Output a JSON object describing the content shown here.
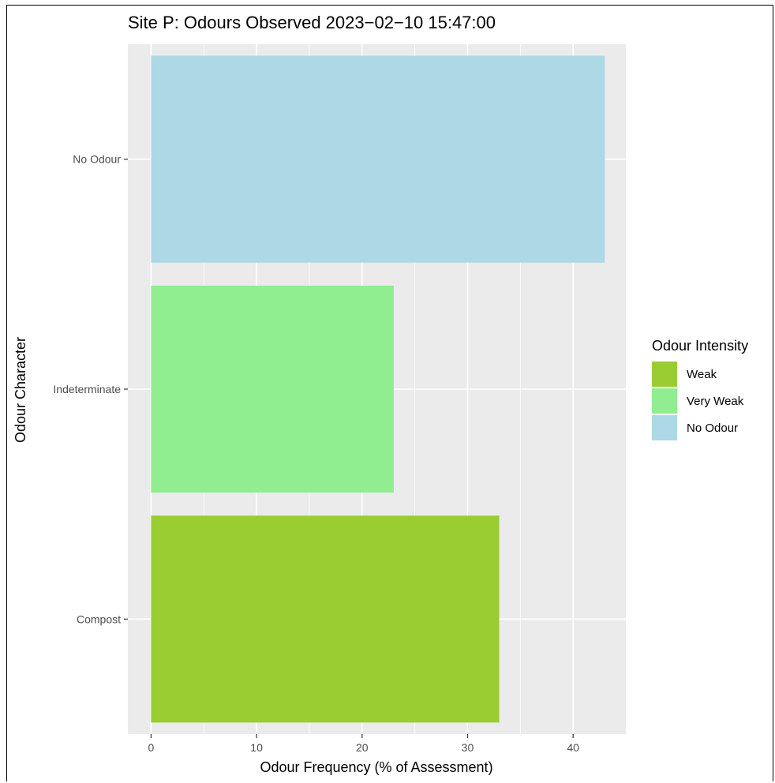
{
  "chart_data": {
    "type": "bar",
    "orientation": "horizontal",
    "title": "Site P: Odours Observed 2023−02−10 15:47:00",
    "xlabel": "Odour Frequency (% of Assessment)",
    "ylabel": "Odour Character",
    "categories": [
      "No Odour",
      "Indeterminate",
      "Compost"
    ],
    "values": [
      43,
      23,
      33
    ],
    "bar_intensity": [
      "No Odour",
      "Very Weak",
      "Weak"
    ],
    "xlim": [
      -2.2,
      45
    ],
    "x_ticks": [
      0,
      10,
      20,
      30,
      40
    ],
    "grid": true,
    "legend": {
      "title": "Odour Intensity",
      "position": "right",
      "entries": [
        {
          "label": "Weak",
          "color": "#9acd32"
        },
        {
          "label": "Very Weak",
          "color": "#90ee90"
        },
        {
          "label": "No Odour",
          "color": "#add8e6"
        }
      ]
    },
    "colors": {
      "panel_background": "#ebebeb",
      "grid": "#ffffff"
    }
  }
}
